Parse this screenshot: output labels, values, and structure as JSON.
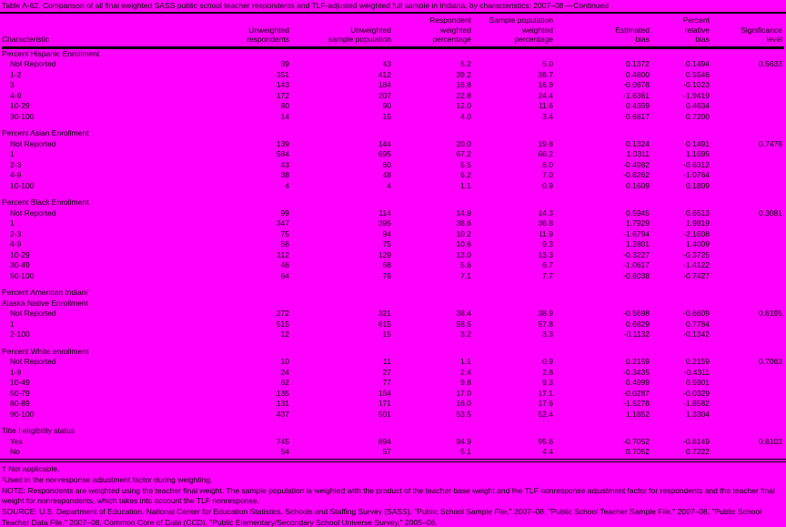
{
  "page": {
    "background_color": "#FF00FF",
    "text_color": "#000000"
  },
  "title": "Table A-62. Comparison of all final weighted SASS public school teacher respondents and TLF-adjusted weighted full sample in Indiana, by characteristics: 2007–08 —Continued",
  "columns": [
    "Characteristic",
    "Unweighted\nrespondents",
    "Unweighted\nsample population",
    "Respondent\nweighted\npercentage",
    "Sample population\nweighted\npercentage",
    "Estimated\nbias",
    "Percent\nrelative\nbias",
    "Significance\nlevel"
  ],
  "sections": [
    {
      "name": "Percent Hispanic Enrollment",
      "rows": [
        {
          "label": "Not Reported",
          "values": [
            "39",
            "43",
            "5.2",
            "5.0",
            "0.1372",
            "0.1494",
            "0.5633"
          ]
        },
        {
          "label": "1-2",
          "values": [
            "351",
            "412",
            "39.2",
            "38.7",
            "0.4800",
            "0.5546",
            ""
          ]
        },
        {
          "label": "3",
          "values": [
            "143",
            "184",
            "16.8",
            "16.9",
            "-0.0878",
            "-0.1023",
            ""
          ]
        },
        {
          "label": "4-9",
          "values": [
            "172",
            "207",
            "22.8",
            "24.4",
            "-1.6361",
            "-1.9419",
            ""
          ]
        },
        {
          "label": "10-29",
          "values": [
            "80",
            "90",
            "12.0",
            "11.6",
            "0.4359",
            "0.4634",
            ""
          ]
        },
        {
          "label": "30-100",
          "values": [
            "14",
            "15",
            "4.0",
            "3.4",
            "0.6817",
            "0.7200",
            ""
          ]
        }
      ]
    },
    {
      "name": "Percent Asian Enrollment",
      "rows": [
        {
          "label": "Not Reported",
          "values": [
            "139",
            "144",
            "20.0",
            "19.8",
            "0.1324",
            "0.1491",
            "0.7478"
          ]
        },
        {
          "label": "1",
          "values": [
            "584",
            "695",
            "67.2",
            "66.2",
            "1.0311",
            "1.1695",
            ""
          ]
        },
        {
          "label": "2-3",
          "values": [
            "43",
            "60",
            "5.5",
            "6.0",
            "-0.4982",
            "-0.6312",
            ""
          ]
        },
        {
          "label": "4-9",
          "values": [
            "38",
            "48",
            "6.2",
            "7.0",
            "-0.8262",
            "-1.0764",
            ""
          ]
        },
        {
          "label": "10-100",
          "values": [
            "4",
            "4",
            "1.1",
            "0.9",
            "0.1609",
            "0.1809",
            ""
          ]
        }
      ]
    },
    {
      "name": "Percent Black Enrollment",
      "rows": [
        {
          "label": "Not Reported",
          "values": [
            "99",
            "114",
            "14.9",
            "14.3",
            "0.5945",
            "0.6513",
            "0.3081"
          ]
        },
        {
          "label": "1",
          "values": [
            "347",
            "395",
            "38.6",
            "36.8",
            "1.7929",
            "1.9819",
            ""
          ]
        },
        {
          "label": "2-3",
          "values": [
            "75",
            "94",
            "10.2",
            "11.9",
            "-1.6794",
            "-2.1608",
            ""
          ]
        },
        {
          "label": "4-9",
          "values": [
            "56",
            "75",
            "10.6",
            "9.3",
            "1.2801",
            "1.4009",
            ""
          ]
        },
        {
          "label": "10-29",
          "values": [
            "112",
            "129",
            "13.0",
            "13.3",
            "-0.3227",
            "-0.3725",
            ""
          ]
        },
        {
          "label": "30-49",
          "values": [
            "46",
            "68",
            "5.6",
            "6.7",
            "-1.0617",
            "-1.4122",
            ""
          ]
        },
        {
          "label": "50-100",
          "values": [
            "64",
            "76",
            "7.1",
            "7.7",
            "-0.6038",
            "-0.7427",
            ""
          ]
        }
      ]
    },
    {
      "name": "Percent American Indian/\nAlaska Native Enrollment",
      "rows": [
        {
          "label": "Not Reported",
          "values": [
            "272",
            "321",
            "38.4",
            "38.9",
            "-0.5698",
            "-0.6609",
            "0.6195"
          ]
        },
        {
          "label": "1",
          "values": [
            "515",
            "615",
            "58.5",
            "57.8",
            "0.6829",
            "0.7784",
            ""
          ]
        },
        {
          "label": "2-100",
          "values": [
            "12",
            "15",
            "3.2",
            "3.3",
            "-0.1132",
            "-0.1342",
            ""
          ]
        }
      ]
    },
    {
      "name": "Percent White enrollment",
      "rows": [
        {
          "label": "Not Reported",
          "values": [
            "10",
            "11",
            "1.1",
            "0.9",
            "0.2159",
            "0.2159",
            "0.7063"
          ]
        },
        {
          "label": "1-9",
          "values": [
            "24",
            "27",
            "2.4",
            "2.8",
            "-0.3435",
            "-0.4311",
            ""
          ]
        },
        {
          "label": "10-49",
          "values": [
            "62",
            "77",
            "9.8",
            "9.3",
            "0.4999",
            "0.5901",
            ""
          ]
        },
        {
          "label": "50-79",
          "values": [
            "135",
            "164",
            "17.0",
            "17.1",
            "-0.0287",
            "-0.0329",
            ""
          ]
        },
        {
          "label": "80-89",
          "values": [
            "131",
            "171",
            "16.0",
            "17.6",
            "-1.5278",
            "-1.8582",
            ""
          ]
        },
        {
          "label": "90-100",
          "values": [
            "437",
            "501",
            "53.5",
            "52.4",
            "1.1852",
            "1.3304",
            ""
          ]
        }
      ]
    },
    {
      "name": "Title I eligibility status",
      "rows": [
        {
          "label": "Yes",
          "values": [
            "745",
            "894",
            "94.9",
            "95.6",
            "-0.7052",
            "-0.8149",
            "0.6103"
          ]
        },
        {
          "label": "No",
          "values": [
            "54",
            "57",
            "5.1",
            "4.4",
            "0.7052",
            "0.7222",
            ""
          ]
        }
      ]
    }
  ],
  "footnotes": [
    "† Not applicable.",
    "¹Used in the nonresponse adjustment factor during weighting.",
    "NOTE: Respondents are weighted using the teacher final weight. The sample population is weighted with the product of the teacher base weight and the TLF nonresponse adjustment factor for respondents and the teacher final weight for nonrespondents, which takes into account the TLF nonresponse.",
    "SOURCE: U.S. Department of Education, National Center for Education Statistics, Schools and Staffing Survey (SASS), \"Public School Sample File,\" 2007–08, \"Public School Teacher Sample File,\" 2007–08, \"Public School Teacher Data File,\" 2007–08, Common Core of Data (CCD), \"Public Elementary/Secondary School Universe Survey,\" 2005–06."
  ]
}
